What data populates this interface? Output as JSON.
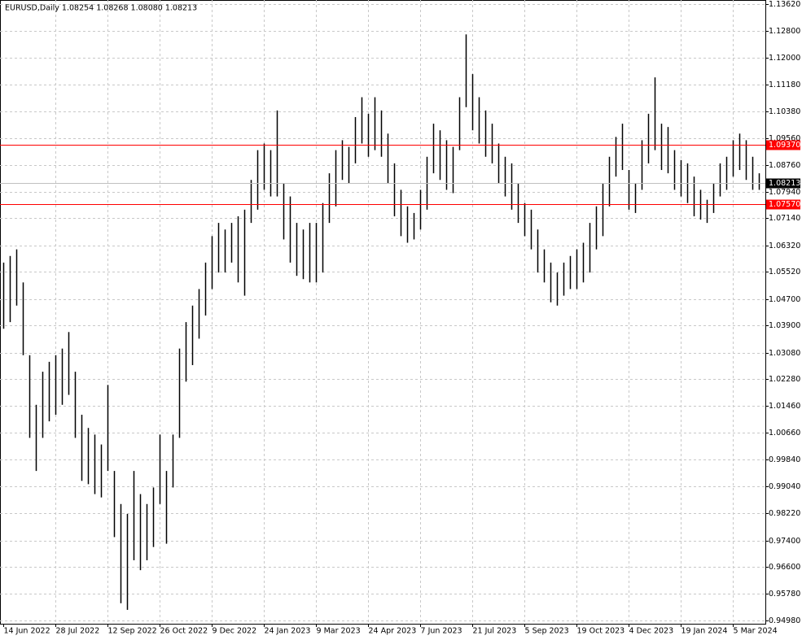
{
  "chart_data": {
    "type": "ohlc",
    "title": "EURUSD,Daily  1.08254 1.08268 1.08080 1.08213",
    "color": "#000000",
    "grid": true,
    "ylim": [
      0.9488,
      1.1374
    ],
    "yticks": [
      {
        "value": 0.9498,
        "label": "0.94980"
      },
      {
        "value": 0.9578,
        "label": "0.95780"
      },
      {
        "value": 0.966,
        "label": "0.96600"
      },
      {
        "value": 0.974,
        "label": "0.97400"
      },
      {
        "value": 0.9822,
        "label": "0.98220"
      },
      {
        "value": 0.9904,
        "label": "0.99040"
      },
      {
        "value": 0.9984,
        "label": "0.99840"
      },
      {
        "value": 1.0066,
        "label": "1.00660"
      },
      {
        "value": 1.0146,
        "label": "1.01460"
      },
      {
        "value": 1.0228,
        "label": "1.02280"
      },
      {
        "value": 1.0308,
        "label": "1.03080"
      },
      {
        "value": 1.039,
        "label": "1.03900"
      },
      {
        "value": 1.047,
        "label": "1.04700"
      },
      {
        "value": 1.0552,
        "label": "1.05520"
      },
      {
        "value": 1.0632,
        "label": "1.06320"
      },
      {
        "value": 1.0714,
        "label": "1.07140"
      },
      {
        "value": 1.0794,
        "label": "1.07940"
      },
      {
        "value": 1.0876,
        "label": "1.08760"
      },
      {
        "value": 1.0956,
        "label": "1.09560"
      },
      {
        "value": 1.1038,
        "label": "1.10380"
      },
      {
        "value": 1.1118,
        "label": "1.11180"
      },
      {
        "value": 1.12,
        "label": "1.12000"
      },
      {
        "value": 1.128,
        "label": "1.12800"
      },
      {
        "value": 1.1362,
        "label": "1.13620"
      }
    ],
    "x_labels": [
      "14 Jun 2022",
      "28 Jul 2022",
      "12 Sep 2022",
      "26 Oct 2022",
      "9 Dec 2022",
      "24 Jan 2023",
      "9 Mar 2023",
      "24 Apr 2023",
      "7 Jun 2023",
      "21 Jul 2023",
      "5 Sep 2023",
      "19 Oct 2023",
      "4 Dec 2023",
      "19 Jan 2024",
      "5 Mar 2024"
    ],
    "high": [
      1.058,
      1.06,
      1.062,
      1.052,
      1.03,
      1.015,
      1.025,
      1.028,
      1.03,
      1.032,
      1.037,
      1.025,
      1.012,
      1.008,
      1.006,
      1.003,
      1.021,
      0.995,
      0.985,
      0.982,
      0.995,
      0.988,
      0.985,
      0.99,
      1.006,
      0.995,
      1.006,
      1.032,
      1.04,
      1.045,
      1.05,
      1.058,
      1.066,
      1.07,
      1.068,
      1.07,
      1.072,
      1.074,
      1.083,
      1.092,
      1.094,
      1.092,
      1.104,
      1.082,
      1.078,
      1.07,
      1.068,
      1.07,
      1.07,
      1.076,
      1.085,
      1.092,
      1.095,
      1.093,
      1.102,
      1.108,
      1.103,
      1.108,
      1.104,
      1.097,
      1.088,
      1.08,
      1.075,
      1.073,
      1.08,
      1.09,
      1.1,
      1.098,
      1.095,
      1.093,
      1.108,
      1.127,
      1.115,
      1.108,
      1.104,
      1.1,
      1.094,
      1.09,
      1.088,
      1.082,
      1.076,
      1.074,
      1.068,
      1.062,
      1.058,
      1.055,
      1.058,
      1.06,
      1.062,
      1.064,
      1.07,
      1.075,
      1.082,
      1.09,
      1.096,
      1.1,
      1.086,
      1.082,
      1.095,
      1.103,
      1.114,
      1.1,
      1.099,
      1.092,
      1.089,
      1.088,
      1.084,
      1.08,
      1.077,
      1.082,
      1.088,
      1.09,
      1.095,
      1.097,
      1.095,
      1.09,
      1.085
    ],
    "low": [
      1.038,
      1.04,
      1.045,
      1.03,
      1.005,
      0.995,
      1.005,
      1.01,
      1.012,
      1.015,
      1.018,
      1.005,
      0.992,
      0.991,
      0.988,
      0.987,
      0.995,
      0.975,
      0.955,
      0.953,
      0.968,
      0.965,
      0.968,
      0.972,
      0.985,
      0.973,
      0.99,
      1.005,
      1.022,
      1.027,
      1.035,
      1.042,
      1.05,
      1.055,
      1.055,
      1.058,
      1.052,
      1.048,
      1.07,
      1.074,
      1.08,
      1.078,
      1.078,
      1.065,
      1.058,
      1.054,
      1.053,
      1.052,
      1.052,
      1.055,
      1.07,
      1.075,
      1.083,
      1.082,
      1.088,
      1.094,
      1.09,
      1.092,
      1.09,
      1.082,
      1.072,
      1.066,
      1.064,
      1.065,
      1.068,
      1.074,
      1.085,
      1.083,
      1.08,
      1.079,
      1.092,
      1.105,
      1.098,
      1.094,
      1.09,
      1.088,
      1.082,
      1.078,
      1.074,
      1.07,
      1.066,
      1.062,
      1.055,
      1.052,
      1.046,
      1.045,
      1.048,
      1.05,
      1.05,
      1.052,
      1.055,
      1.062,
      1.066,
      1.075,
      1.084,
      1.086,
      1.074,
      1.073,
      1.08,
      1.088,
      1.092,
      1.086,
      1.085,
      1.08,
      1.078,
      1.076,
      1.072,
      1.071,
      1.07,
      1.073,
      1.078,
      1.08,
      1.084,
      1.086,
      1.083,
      1.08,
      1.08
    ],
    "levels": [
      {
        "value": 1.0937,
        "label": "1.09370",
        "color": "#ff0000"
      },
      {
        "value": 1.0757,
        "label": "1.07570",
        "color": "#ff0000"
      }
    ],
    "current_price": {
      "value": 1.08213,
      "label": "1.08213",
      "color": "#000000"
    }
  }
}
